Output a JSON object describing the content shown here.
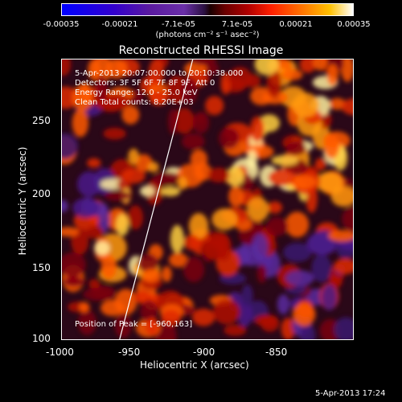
{
  "colorbar": {
    "ticks": [
      "-0.00035",
      "-0.00021",
      "-7.1e-05",
      "7.1e-05",
      "0.00021",
      "0.00035"
    ],
    "unit": "(photons cm⁻² s⁻¹ asec⁻²)"
  },
  "title": "Reconstructed RHESSI Image",
  "info": {
    "time_range": "5-Apr-2013 20:07:00.000 to 20:10:38.000",
    "detectors": "Detectors: 3F 5F 6F 7F 8F 9F, Att 0",
    "energy_range": "Energy Range: 12.0 - 25.0 keV",
    "clean_counts": "Clean     Total counts: 8.20E+03",
    "peak": "Position of Peak = [-960,163]"
  },
  "axes": {
    "xlabel": "Heliocentric X (arcsec)",
    "ylabel": "Heliocentric Y (arcsec)",
    "xticks": [
      "-1000",
      "-950",
      "-900",
      "-850"
    ],
    "yticks": [
      "250",
      "200",
      "150",
      "100"
    ]
  },
  "footer": {
    "timestamp": "5-Apr-2013 17:24"
  },
  "colors": {
    "background": "#000000",
    "text": "#ffffff"
  }
}
